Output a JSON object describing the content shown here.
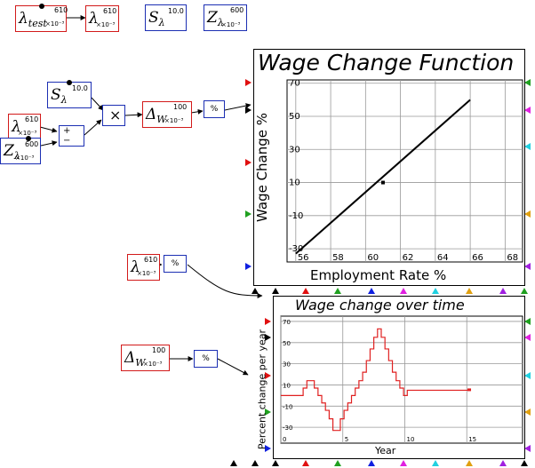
{
  "variables": {
    "lambda_test": {
      "symbol": "λ",
      "sub": "test",
      "scale": "×10⁻³",
      "value": "610"
    },
    "lambda_top": {
      "symbol": "λ",
      "scale": "×10⁻³",
      "value": "610"
    },
    "s_lambda_top": {
      "symbol": "S",
      "sub": "λ",
      "value": "10.0"
    },
    "z_lambda_top": {
      "symbol": "Z",
      "sub": "λ",
      "scale": "×10⁻³",
      "value": "600"
    },
    "s_lambda_mid": {
      "symbol": "S",
      "sub": "λ",
      "value": "10.0"
    },
    "lambda_mid": {
      "symbol": "λ",
      "scale": "×10⁻³",
      "value": "610"
    },
    "z_lambda_mid": {
      "symbol": "Z",
      "sub": "λ",
      "scale": "×10⁻³",
      "value": "600"
    },
    "delta_w_mid": {
      "symbol": "Δ",
      "sub": "W",
      "scale": "×10⁻³",
      "value": "100"
    },
    "lambda_bottom": {
      "symbol": "λ",
      "scale": "×10⁻³",
      "value": "610"
    },
    "delta_w_bottom": {
      "symbol": "Δ",
      "sub": "W",
      "scale": "×10⁻³",
      "value": "100"
    }
  },
  "operators": {
    "percent": "%",
    "multiply": "×",
    "plus": "+",
    "minus": "−"
  },
  "colors": {
    "stock_border": "#d21a1a",
    "flow_border": "#1c2fb3",
    "series": "#e02020",
    "port_colors": [
      "#e01010",
      "#20a020",
      "#1020e0",
      "#e020e0",
      "#20d0e0",
      "#e0a010",
      "#a020e0"
    ]
  },
  "chart_data": [
    {
      "type": "line",
      "title": "Wage Change Function",
      "xlabel": "Employment Rate %",
      "ylabel": "Wage Change %",
      "xlim": [
        55.5,
        69
      ],
      "ylim": [
        -38,
        72
      ],
      "x_ticks": [
        "56",
        "58",
        "60",
        "62",
        "64",
        "66",
        "68"
      ],
      "y_ticks": [
        "70",
        "50",
        "30",
        "10",
        "-10",
        "-30"
      ],
      "grid": true,
      "series": [
        {
          "x": [
            56,
            66
          ],
          "y": [
            -33,
            60
          ]
        }
      ],
      "marker": {
        "x": 61,
        "y": 10
      }
    },
    {
      "type": "line",
      "title": "Wage change over time",
      "xlabel": "Year",
      "ylabel": "Percent change per year",
      "xlim": [
        0,
        19.5
      ],
      "ylim": [
        -45,
        75
      ],
      "x_ticks": [
        "0",
        "5",
        "10",
        "15"
      ],
      "y_ticks": [
        "70",
        "50",
        "30",
        "10",
        "-10",
        "-30"
      ],
      "grid": true,
      "series": [
        {
          "x": [
            0,
            1.8,
            1.8,
            2.1,
            2.1,
            2.4,
            2.4,
            2.7,
            2.7,
            3.0,
            3.0,
            3.3,
            3.3,
            3.6,
            3.6,
            3.9,
            3.9,
            4.2,
            4.2,
            4.5,
            4.5,
            4.8,
            4.8,
            5.1,
            5.1,
            5.4,
            5.4,
            5.7,
            5.7,
            6.0,
            6.0,
            6.3,
            6.3,
            6.6,
            6.6,
            6.9,
            6.9,
            7.2,
            7.2,
            7.5,
            7.5,
            7.8,
            7.8,
            8.1,
            8.1,
            8.4,
            8.4,
            8.7,
            8.7,
            9.0,
            9.0,
            9.3,
            9.3,
            9.6,
            9.6,
            9.9,
            9.9,
            10.2,
            10.2,
            15.2
          ],
          "y": [
            0,
            0,
            7,
            7,
            14,
            14,
            14,
            14,
            7,
            7,
            0,
            0,
            -7,
            -7,
            -14,
            -14,
            -22,
            -22,
            -33,
            -33,
            -33,
            -33,
            -22,
            -22,
            -14,
            -14,
            -7,
            -7,
            0,
            0,
            7,
            7,
            14,
            14,
            22,
            22,
            33,
            33,
            44,
            44,
            55,
            55,
            63,
            63,
            55,
            55,
            44,
            44,
            33,
            33,
            22,
            22,
            14,
            14,
            7,
            7,
            0,
            0,
            5,
            5
          ]
        }
      ]
    }
  ]
}
